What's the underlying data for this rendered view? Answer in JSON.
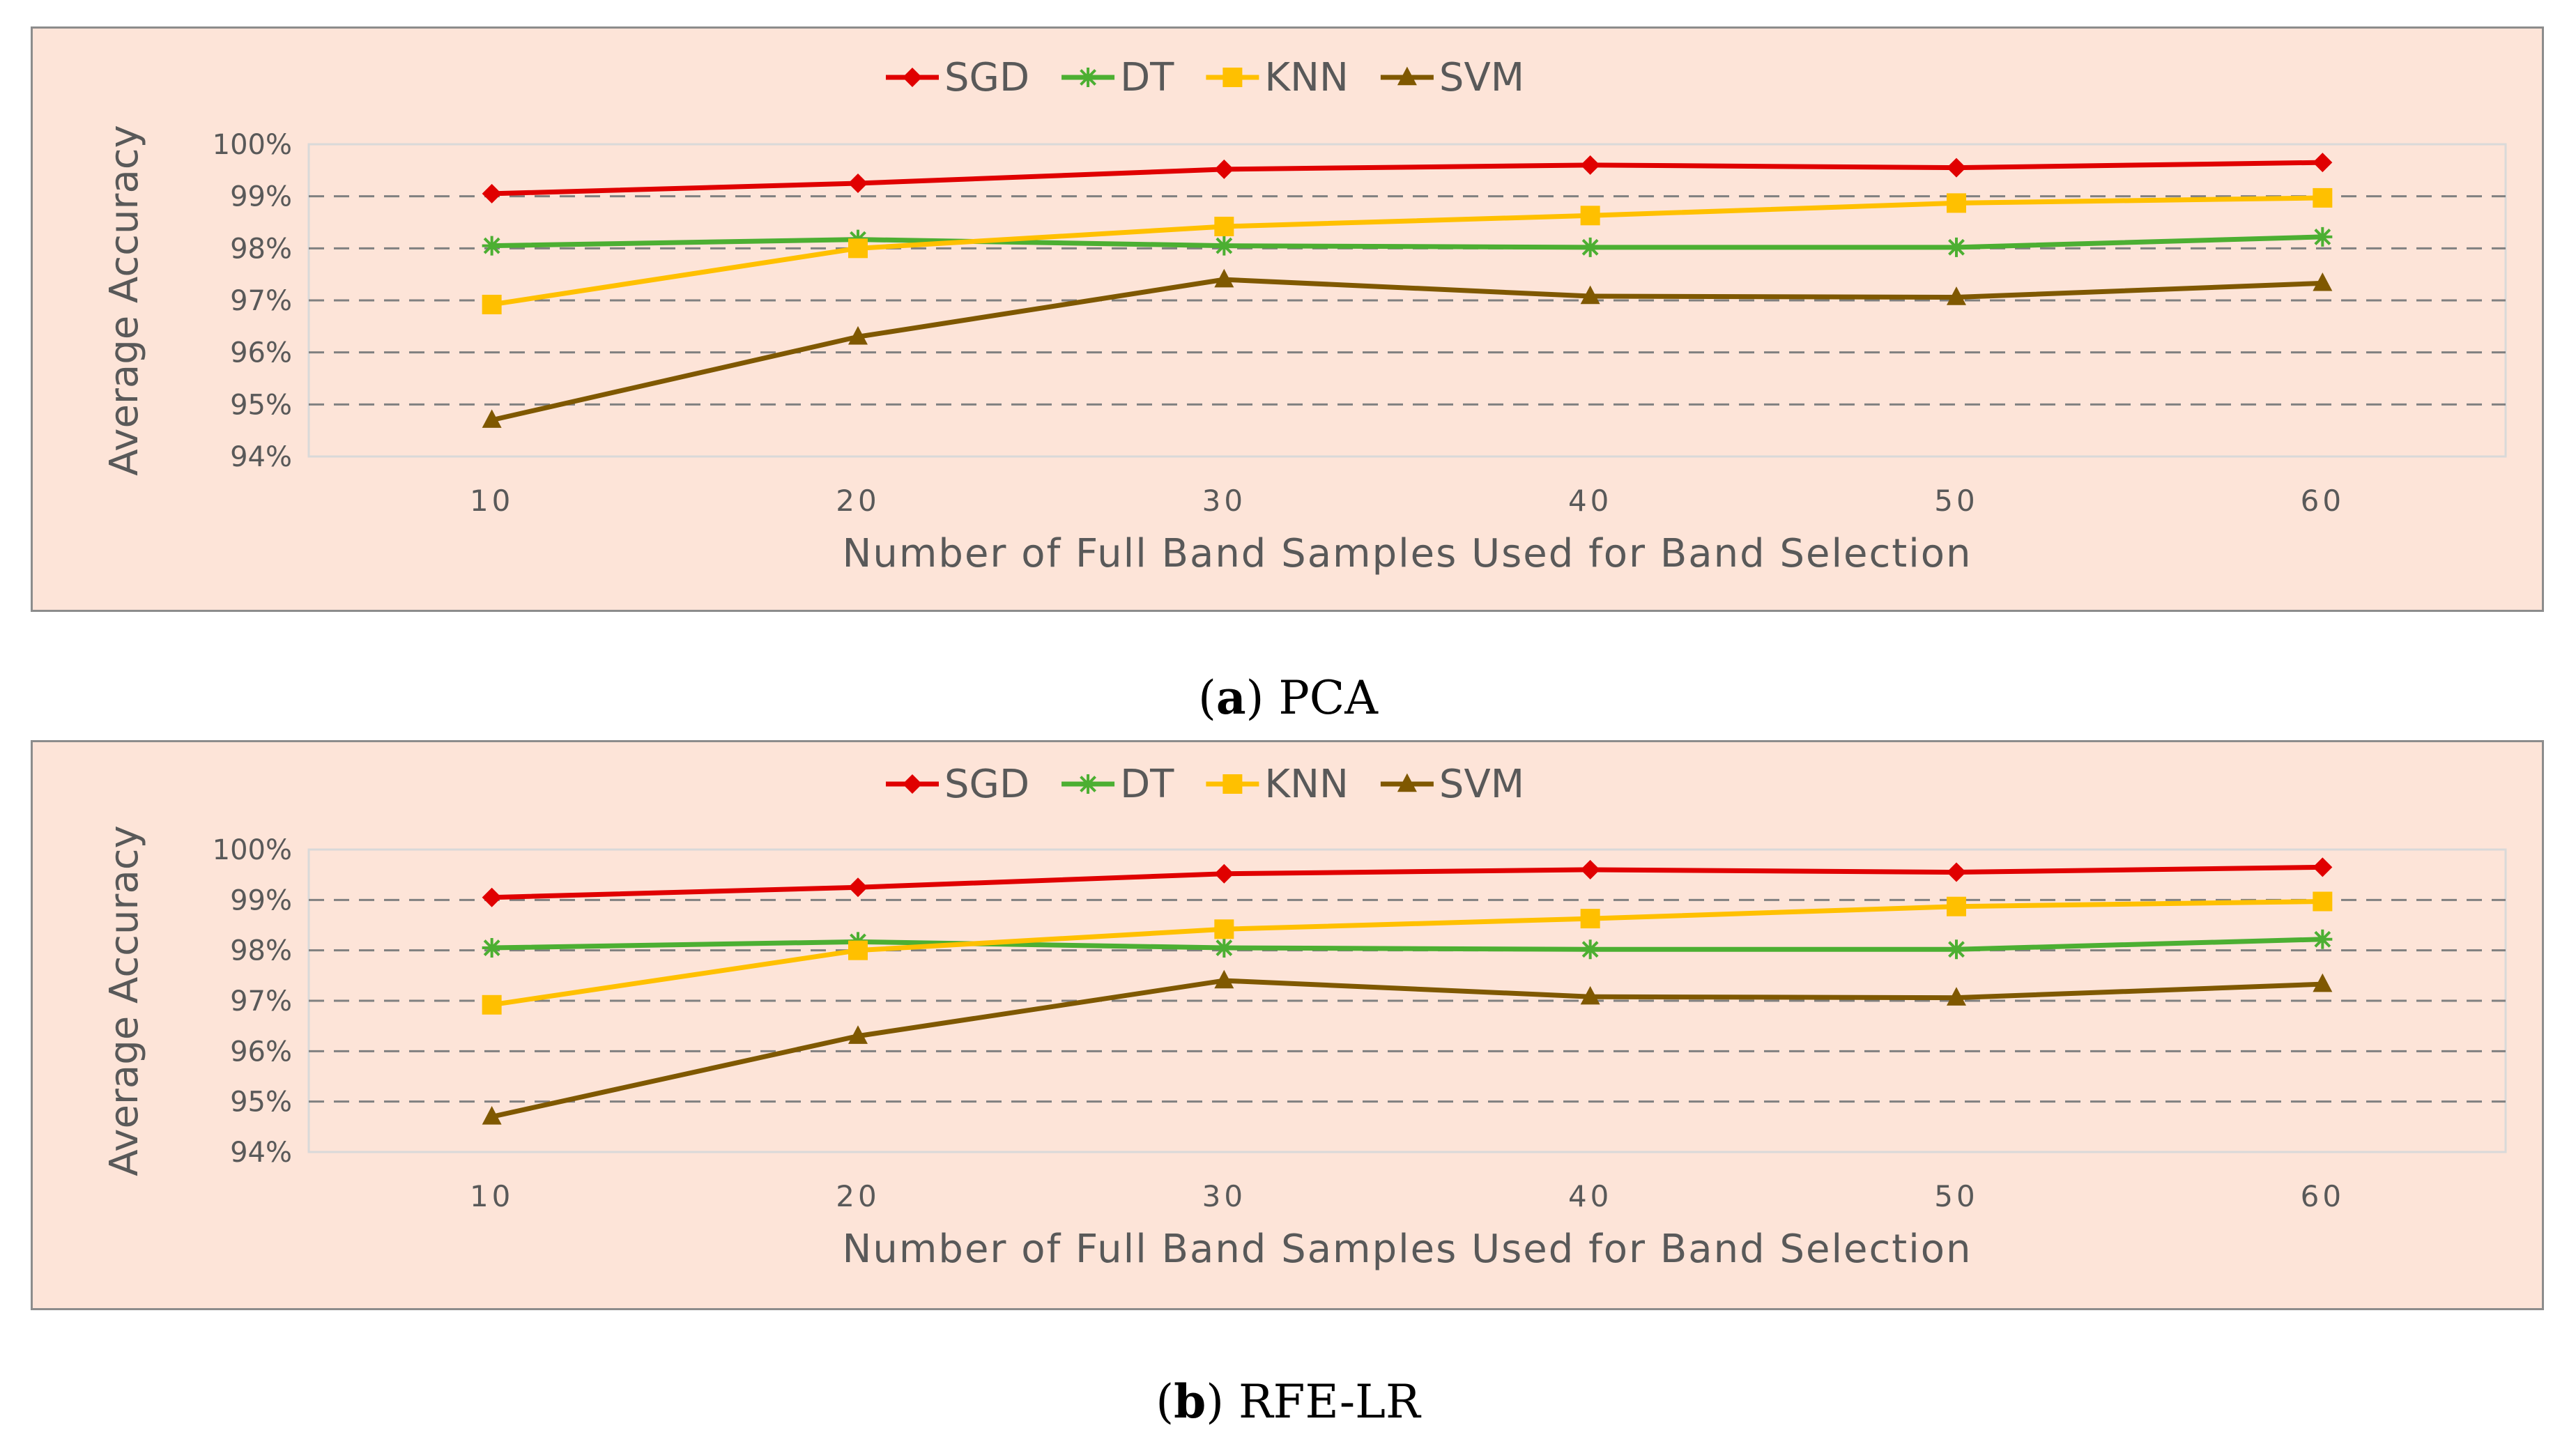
{
  "chart_data": [
    {
      "type": "line",
      "panel_letter": "a",
      "panel_label": "PCA",
      "xlabel": "Number of Full Band Samples Used for Band Selection",
      "ylabel": "Average Accuracy",
      "categories": [
        "10",
        "20",
        "30",
        "40",
        "50",
        "60"
      ],
      "ylim": [
        94,
        100
      ],
      "yticks": [
        "94%",
        "95%",
        "96%",
        "97%",
        "98%",
        "99%",
        "100%"
      ],
      "gridlines": "dashed horizontal",
      "legend_position": "top-center",
      "series": [
        {
          "name": "SGD",
          "color": "#e00000",
          "marker": "diamond",
          "values": [
            99.05,
            99.25,
            99.52,
            99.6,
            99.55,
            99.65
          ]
        },
        {
          "name": "DT",
          "color": "#4caf32",
          "marker": "asterisk",
          "values": [
            98.05,
            98.17,
            98.05,
            98.02,
            98.02,
            98.22
          ]
        },
        {
          "name": "KNN",
          "color": "#ffc000",
          "marker": "square",
          "values": [
            96.92,
            98.0,
            98.42,
            98.63,
            98.87,
            98.97
          ]
        },
        {
          "name": "SVM",
          "color": "#7f5800",
          "marker": "triangle",
          "values": [
            94.7,
            96.3,
            97.4,
            97.08,
            97.06,
            97.33
          ]
        }
      ]
    },
    {
      "type": "line",
      "panel_letter": "b",
      "panel_label": "RFE-LR",
      "xlabel": "Number of Full Band Samples Used for Band Selection",
      "ylabel": "Average Accuracy",
      "categories": [
        "10",
        "20",
        "30",
        "40",
        "50",
        "60"
      ],
      "ylim": [
        94,
        100
      ],
      "yticks": [
        "94%",
        "95%",
        "96%",
        "97%",
        "98%",
        "99%",
        "100%"
      ],
      "gridlines": "dashed horizontal",
      "legend_position": "top-center",
      "series": [
        {
          "name": "SGD",
          "color": "#e00000",
          "marker": "diamond",
          "values": [
            99.05,
            99.25,
            99.52,
            99.6,
            99.55,
            99.65
          ]
        },
        {
          "name": "DT",
          "color": "#4caf32",
          "marker": "asterisk",
          "values": [
            98.05,
            98.17,
            98.05,
            98.02,
            98.02,
            98.22
          ]
        },
        {
          "name": "KNN",
          "color": "#ffc000",
          "marker": "square",
          "values": [
            96.92,
            98.0,
            98.42,
            98.63,
            98.87,
            98.97
          ]
        },
        {
          "name": "SVM",
          "color": "#7f5800",
          "marker": "triangle",
          "values": [
            94.7,
            96.3,
            97.4,
            97.08,
            97.06,
            97.33
          ]
        }
      ]
    }
  ]
}
